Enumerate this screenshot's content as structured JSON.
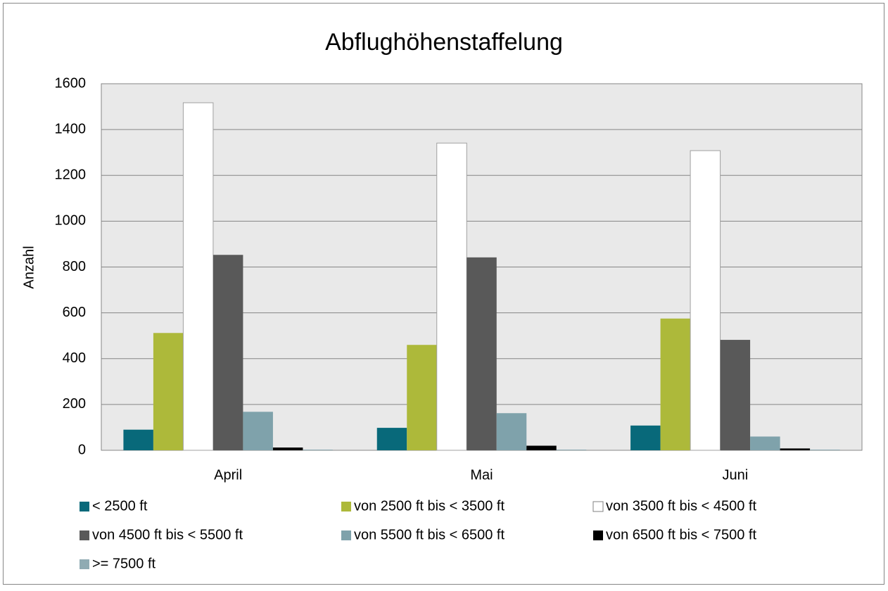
{
  "chart_data": {
    "type": "bar",
    "title": "Abflughöhenstaffelung",
    "y_label": "Anzahl",
    "categories": [
      "April",
      "Mai",
      "Juni"
    ],
    "series": [
      {
        "name": "< 2500 ft",
        "color": "#08697a",
        "values": [
          90,
          98,
          108
        ]
      },
      {
        "name": "von 2500 ft bis < 3500 ft",
        "color": "#adb93a",
        "values": [
          512,
          460,
          575
        ]
      },
      {
        "name": "von 3500 ft bis < 4500 ft",
        "color": "#ffffff",
        "values": [
          1517,
          1341,
          1308
        ]
      },
      {
        "name": "von 4500 ft bis < 5500 ft",
        "color": "#595959",
        "values": [
          853,
          842,
          482
        ]
      },
      {
        "name": "von 5500 ft bis < 6500 ft",
        "color": "#7fa2ab",
        "values": [
          168,
          162,
          60
        ]
      },
      {
        "name": "von 6500 ft bis < 7500 ft",
        "color": "#000000",
        "values": [
          12,
          20,
          8
        ]
      },
      {
        "name": ">= 7500 ft",
        "color": "#8fabb3",
        "values": [
          3,
          3,
          3
        ]
      }
    ],
    "ylim": [
      0,
      1600
    ],
    "yticks": [
      0,
      200,
      400,
      600,
      800,
      1000,
      1200,
      1400,
      1600
    ],
    "grid": true,
    "legend": "bottom"
  }
}
